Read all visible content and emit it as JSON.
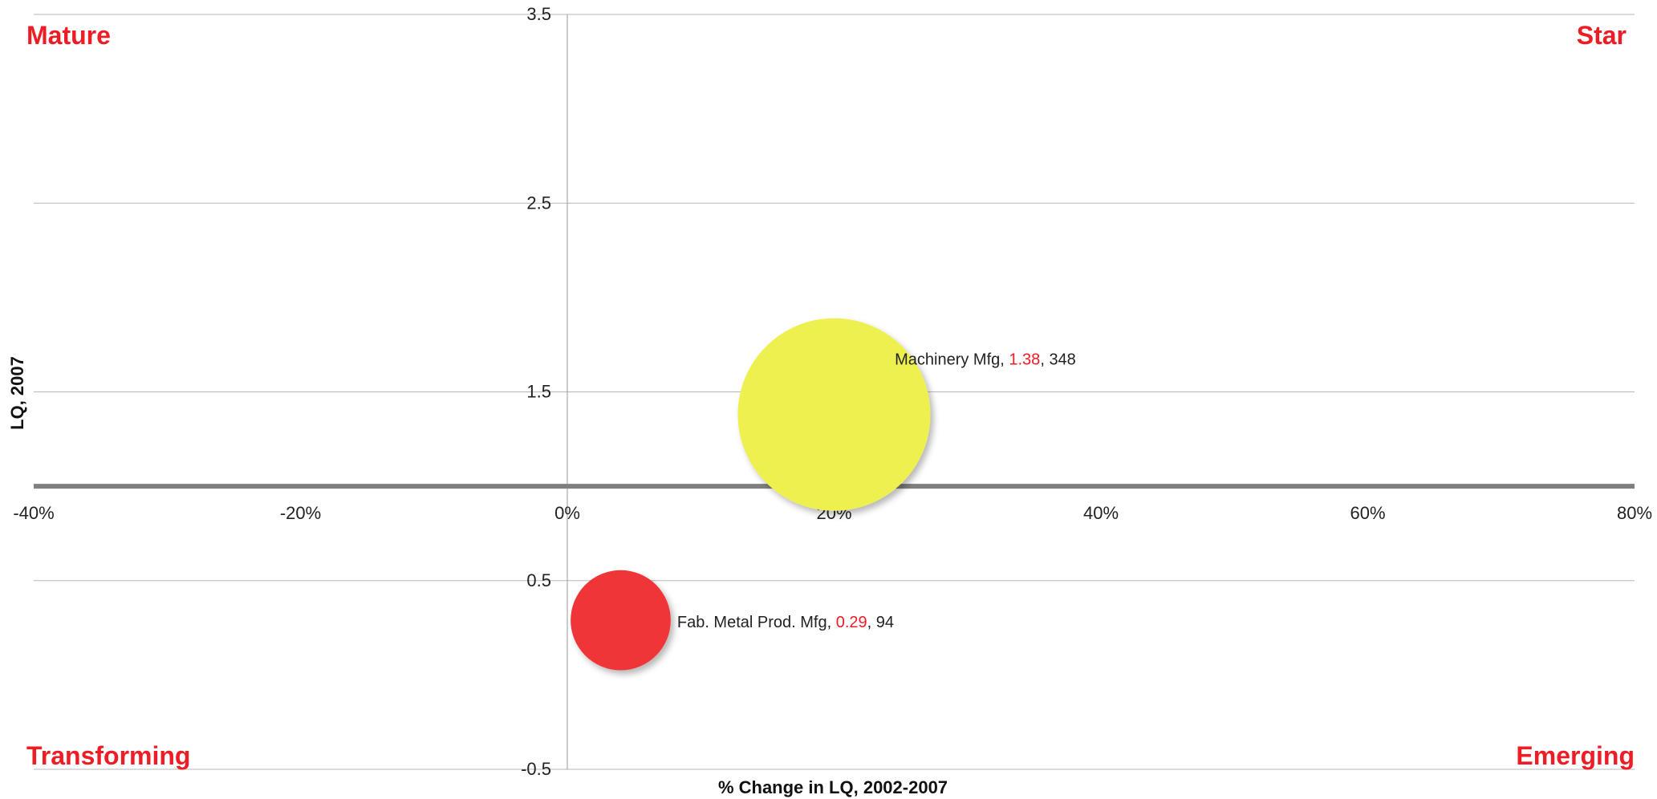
{
  "chart_data": {
    "type": "bubble",
    "xlabel": "% Change in LQ, 2002-2007",
    "ylabel": "LQ, 2007",
    "xlim": [
      -40,
      80
    ],
    "ylim": [
      -0.5,
      3.5
    ],
    "x_ticks": [
      -40,
      -20,
      0,
      20,
      40,
      60,
      80
    ],
    "x_tick_labels": [
      "-40%",
      "-20%",
      "0%",
      "20%",
      "40%",
      "60%",
      "80%"
    ],
    "y_ticks": [
      -0.5,
      0.5,
      1.5,
      2.5,
      3.5
    ],
    "y_tick_labels": [
      "-0.5",
      "0.5",
      "1.5",
      "2.5",
      "3.5"
    ],
    "grid": true,
    "reference_line_y": 1,
    "quadrants": {
      "top_left": "Mature",
      "top_right": "Star",
      "bottom_left": "Transforming",
      "bottom_right": "Emerging"
    },
    "quadrant_color": "#ee1c25",
    "points": [
      {
        "name": "Machinery Mfg",
        "x": 20,
        "y": 1.38,
        "size": 348,
        "label_lq": "1.38",
        "label_size": "348",
        "color": "#eef050"
      },
      {
        "name": "Fab. Metal Prod. Mfg",
        "x": 4,
        "y": 0.29,
        "size": 94,
        "label_lq": "0.29",
        "label_size": "94",
        "color": "#f03538"
      }
    ],
    "label_highlight_color": "#ee1c25"
  }
}
